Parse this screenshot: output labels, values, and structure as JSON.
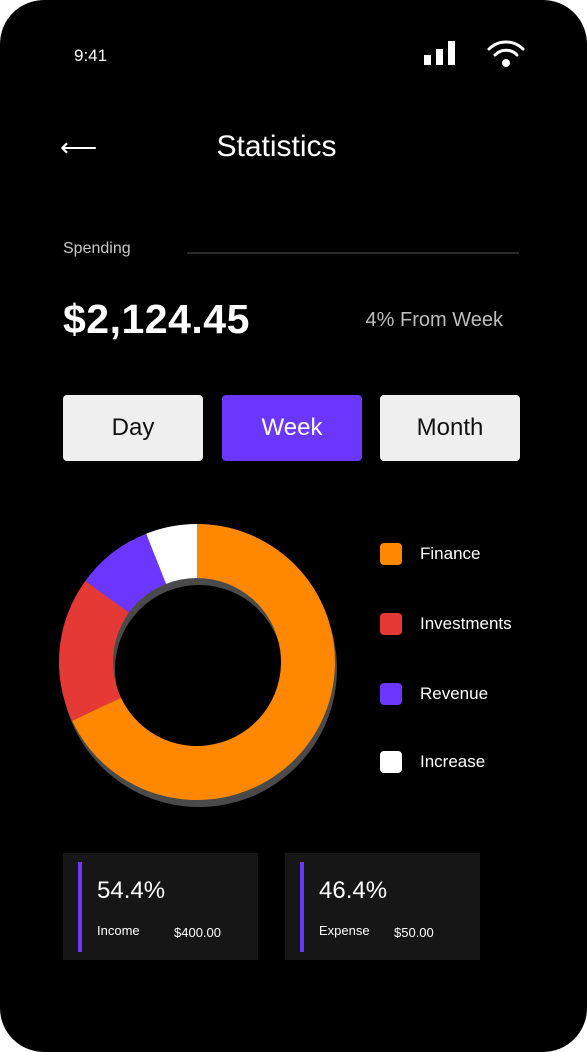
{
  "status_bar": {
    "time": "9:41",
    "signal_icon": "cellular-signal-icon",
    "wifi_icon": "wifi-icon"
  },
  "header": {
    "back_icon": "arrow-left-icon",
    "back_glyph": "⟵",
    "title": "Statistics"
  },
  "spending": {
    "label": "Spending",
    "amount": "$2,124.45",
    "change": "4% From Week"
  },
  "period_tabs": [
    {
      "label": "Day",
      "selected": false
    },
    {
      "label": "Week",
      "selected": true
    },
    {
      "label": "Month",
      "selected": false
    }
  ],
  "colors": {
    "background": "#000000",
    "accent": "#6b37ff",
    "finance": "#ff8800",
    "investments": "#e53935",
    "revenue": "#6b37ff",
    "increase": "#ffffff",
    "card": "#161616"
  },
  "chart_data": {
    "type": "pie",
    "donut": true,
    "legend_placement": "right",
    "categories": [
      "Finance",
      "Investments",
      "Revenue",
      "Increase"
    ],
    "values": [
      68,
      17,
      9,
      6
    ],
    "colors": [
      "#ff8800",
      "#e53935",
      "#6b37ff",
      "#ffffff"
    ]
  },
  "summary_cards": [
    {
      "percent": "54.4%",
      "label": "Income",
      "value": "$400.00"
    },
    {
      "percent": "46.4%",
      "label": "Expense",
      "value": "$50.00"
    }
  ]
}
